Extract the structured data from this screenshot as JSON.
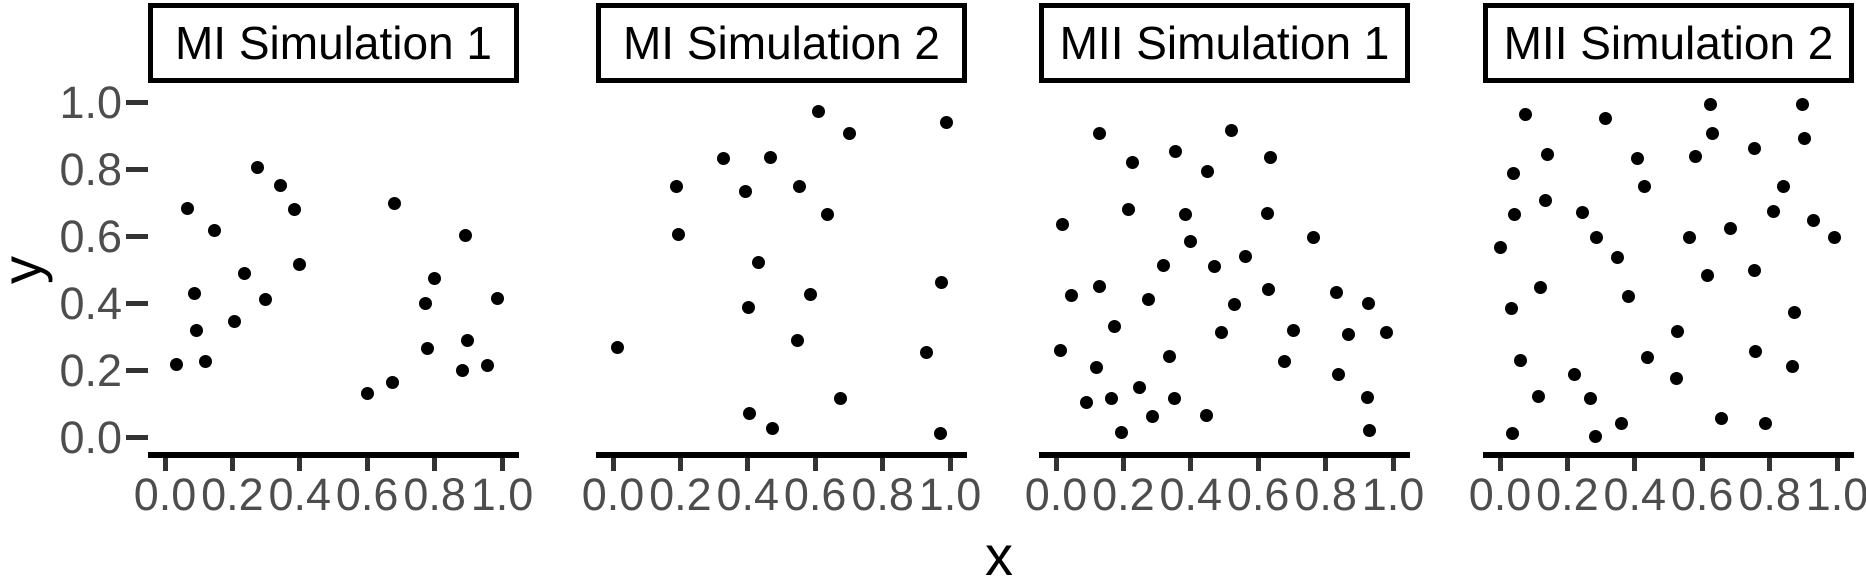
{
  "chart_data": {
    "type": "scatter",
    "xlabel": "x",
    "ylabel": "y",
    "xlim": [
      0,
      1
    ],
    "ylim": [
      0,
      1
    ],
    "grid": false,
    "legend": "none",
    "point_color": "#000000",
    "axis_line_color": "#000000",
    "tick_color": "#333333",
    "tick_label_color": "#4d4d4d",
    "strip_border_color": "#000000",
    "strip_background": "#ffffff",
    "x_ticks": [
      {
        "label": "0.0",
        "value": 0.0
      },
      {
        "label": "0.2",
        "value": 0.2
      },
      {
        "label": "0.4",
        "value": 0.4
      },
      {
        "label": "0.6",
        "value": 0.6
      },
      {
        "label": "0.8",
        "value": 0.8
      },
      {
        "label": "1.0",
        "value": 1.0
      }
    ],
    "y_ticks": [
      {
        "label": "1.0",
        "value": 1.0
      },
      {
        "label": "0.8",
        "value": 0.8
      },
      {
        "label": "0.6",
        "value": 0.6
      },
      {
        "label": "0.4",
        "value": 0.4
      },
      {
        "label": "0.2",
        "value": 0.2
      },
      {
        "label": "0.0",
        "value": 0.0
      }
    ],
    "facets": [
      {
        "title": "MI Simulation 1",
        "points": [
          [
            0.275,
            0.805
          ],
          [
            0.344,
            0.752
          ],
          [
            0.384,
            0.678
          ],
          [
            0.067,
            0.682
          ],
          [
            0.146,
            0.615
          ],
          [
            0.682,
            0.698
          ],
          [
            0.892,
            0.602
          ],
          [
            0.398,
            0.514
          ],
          [
            0.237,
            0.487
          ],
          [
            0.799,
            0.474
          ],
          [
            0.087,
            0.427
          ],
          [
            0.297,
            0.409
          ],
          [
            0.774,
            0.399
          ],
          [
            0.987,
            0.414
          ],
          [
            0.206,
            0.344
          ],
          [
            0.094,
            0.319
          ],
          [
            0.779,
            0.264
          ],
          [
            0.898,
            0.287
          ],
          [
            0.033,
            0.216
          ],
          [
            0.119,
            0.226
          ],
          [
            0.883,
            0.199
          ],
          [
            0.957,
            0.214
          ],
          [
            0.676,
            0.164
          ],
          [
            0.601,
            0.131
          ]
        ]
      },
      {
        "title": "MI Simulation 2",
        "points": [
          [
            0.611,
            0.972
          ],
          [
            0.702,
            0.907
          ],
          [
            0.989,
            0.94
          ],
          [
            0.327,
            0.832
          ],
          [
            0.467,
            0.835
          ],
          [
            0.188,
            0.747
          ],
          [
            0.394,
            0.732
          ],
          [
            0.553,
            0.747
          ],
          [
            0.636,
            0.665
          ],
          [
            0.193,
            0.603
          ],
          [
            0.431,
            0.522
          ],
          [
            0.586,
            0.426
          ],
          [
            0.402,
            0.387
          ],
          [
            0.974,
            0.462
          ],
          [
            0.548,
            0.289
          ],
          [
            0.014,
            0.266
          ],
          [
            0.931,
            0.251
          ],
          [
            0.676,
            0.114
          ],
          [
            0.404,
            0.071
          ],
          [
            0.472,
            0.024
          ],
          [
            0.971,
            0.011
          ]
        ]
      },
      {
        "title": "MII Simulation 1",
        "points": [
          [
            0.129,
            0.907
          ],
          [
            0.521,
            0.915
          ],
          [
            0.354,
            0.852
          ],
          [
            0.228,
            0.818
          ],
          [
            0.637,
            0.835
          ],
          [
            0.451,
            0.793
          ],
          [
            0.215,
            0.68
          ],
          [
            0.384,
            0.665
          ],
          [
            0.627,
            0.667
          ],
          [
            0.02,
            0.635
          ],
          [
            0.399,
            0.585
          ],
          [
            0.764,
            0.595
          ],
          [
            0.561,
            0.538
          ],
          [
            0.319,
            0.512
          ],
          [
            0.471,
            0.509
          ],
          [
            0.129,
            0.449
          ],
          [
            0.047,
            0.421
          ],
          [
            0.632,
            0.439
          ],
          [
            0.273,
            0.411
          ],
          [
            0.531,
            0.397
          ],
          [
            0.833,
            0.431
          ],
          [
            0.928,
            0.399
          ],
          [
            0.173,
            0.331
          ],
          [
            0.491,
            0.311
          ],
          [
            0.704,
            0.319
          ],
          [
            0.868,
            0.306
          ],
          [
            0.982,
            0.311
          ],
          [
            0.014,
            0.259
          ],
          [
            0.337,
            0.239
          ],
          [
            0.119,
            0.206
          ],
          [
            0.677,
            0.224
          ],
          [
            0.838,
            0.186
          ],
          [
            0.248,
            0.149
          ],
          [
            0.091,
            0.104
          ],
          [
            0.166,
            0.114
          ],
          [
            0.352,
            0.116
          ],
          [
            0.923,
            0.119
          ],
          [
            0.285,
            0.061
          ],
          [
            0.447,
            0.064
          ],
          [
            0.193,
            0.014
          ],
          [
            0.93,
            0.019
          ]
        ]
      },
      {
        "title": "MII Simulation 2",
        "points": [
          [
            0.625,
            0.992
          ],
          [
            0.898,
            0.992
          ],
          [
            0.076,
            0.962
          ],
          [
            0.313,
            0.952
          ],
          [
            0.632,
            0.907
          ],
          [
            0.903,
            0.89
          ],
          [
            0.754,
            0.862
          ],
          [
            0.58,
            0.838
          ],
          [
            0.141,
            0.842
          ],
          [
            0.407,
            0.832
          ],
          [
            0.04,
            0.788
          ],
          [
            0.429,
            0.747
          ],
          [
            0.84,
            0.747
          ],
          [
            0.136,
            0.707
          ],
          [
            0.813,
            0.672
          ],
          [
            0.042,
            0.665
          ],
          [
            0.245,
            0.67
          ],
          [
            0.929,
            0.647
          ],
          [
            0.685,
            0.622
          ],
          [
            0.561,
            0.597
          ],
          [
            0.285,
            0.595
          ],
          [
            0.992,
            0.595
          ],
          [
            0.0,
            0.565
          ],
          [
            0.349,
            0.537
          ],
          [
            0.617,
            0.482
          ],
          [
            0.756,
            0.497
          ],
          [
            0.121,
            0.445
          ],
          [
            0.382,
            0.419
          ],
          [
            0.035,
            0.384
          ],
          [
            0.875,
            0.371
          ],
          [
            0.528,
            0.316
          ],
          [
            0.759,
            0.254
          ],
          [
            0.062,
            0.229
          ],
          [
            0.439,
            0.236
          ],
          [
            0.868,
            0.211
          ],
          [
            0.22,
            0.186
          ],
          [
            0.523,
            0.176
          ],
          [
            0.114,
            0.121
          ],
          [
            0.27,
            0.116
          ],
          [
            0.657,
            0.054
          ],
          [
            0.789,
            0.039
          ],
          [
            0.362,
            0.039
          ],
          [
            0.037,
            0.011
          ],
          [
            0.283,
            0.001
          ]
        ]
      }
    ]
  }
}
